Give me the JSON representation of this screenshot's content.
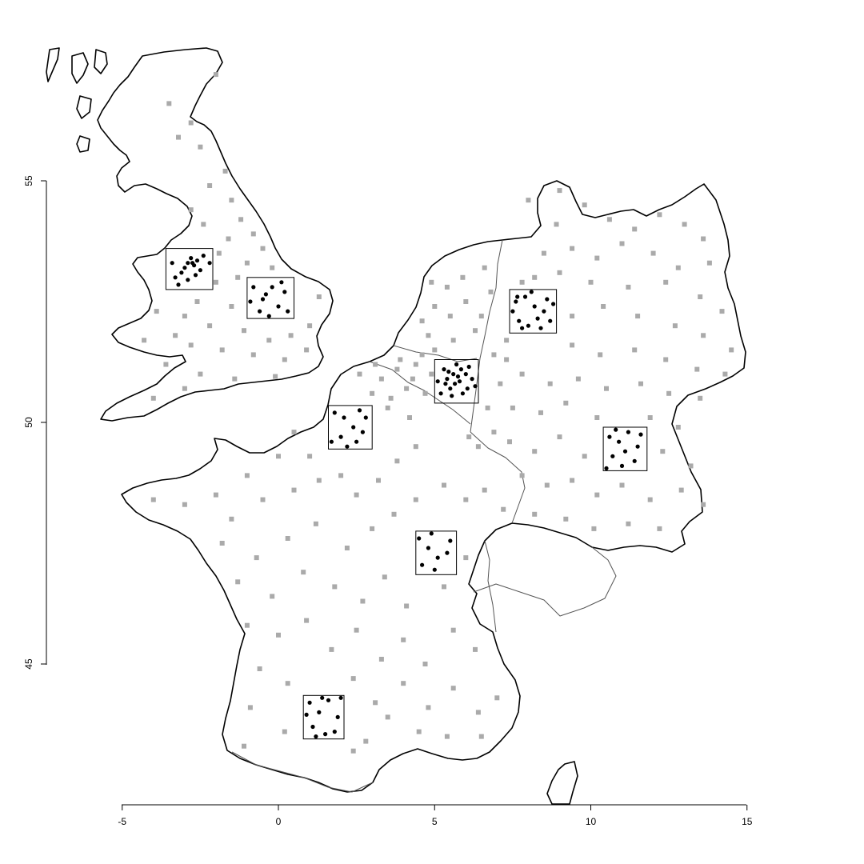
{
  "chart_data": {
    "type": "scatter",
    "title": "",
    "xlabel": "",
    "ylabel": "",
    "xlim": [
      -5,
      15
    ],
    "ylim": [
      42,
      57.5
    ],
    "x_ticks": [
      "-5",
      "0",
      "5",
      "10",
      "15"
    ],
    "y_ticks": [
      "45",
      "50",
      "55"
    ],
    "grid": false,
    "legend": "none",
    "colors": {
      "background_points": "#aaaaaa",
      "sample_points": "#000000",
      "coastline": "#000000",
      "borders": "#555555"
    },
    "sampling_boxes": [
      {
        "id": "nw-england",
        "x": [
          -3.6,
          -2.1
        ],
        "y": [
          52.75,
          53.6
        ]
      },
      {
        "id": "midlands",
        "x": [
          -1.0,
          0.5
        ],
        "y": [
          52.15,
          53.0
        ]
      },
      {
        "id": "lower-rhine",
        "x": [
          5.0,
          6.4
        ],
        "y": [
          50.4,
          51.3
        ]
      },
      {
        "id": "westphalia",
        "x": [
          7.4,
          8.9
        ],
        "y": [
          51.85,
          52.75
        ]
      },
      {
        "id": "picardy",
        "x": [
          1.6,
          3.0
        ],
        "y": [
          49.45,
          50.35
        ]
      },
      {
        "id": "bavaria",
        "x": [
          10.4,
          11.8
        ],
        "y": [
          49.0,
          49.9
        ]
      },
      {
        "id": "burgundy",
        "x": [
          4.4,
          5.7
        ],
        "y": [
          46.85,
          47.75
        ]
      },
      {
        "id": "gascony",
        "x": [
          0.8,
          2.1
        ],
        "y": [
          43.45,
          44.35
        ]
      }
    ],
    "sample_points": [
      [
        -3.0,
        53.2
      ],
      [
        -2.9,
        53.3
      ],
      [
        -2.7,
        53.25
      ],
      [
        -2.6,
        53.35
      ],
      [
        -3.1,
        53.1
      ],
      [
        -2.8,
        53.4
      ],
      [
        -2.5,
        53.15
      ],
      [
        -3.3,
        53.0
      ],
      [
        -2.4,
        53.45
      ],
      [
        -2.9,
        52.95
      ],
      [
        -3.4,
        53.3
      ],
      [
        -2.2,
        53.3
      ],
      [
        -2.65,
        53.05
      ],
      [
        -3.2,
        52.85
      ],
      [
        -2.75,
        53.3
      ],
      [
        -0.8,
        52.8
      ],
      [
        -0.5,
        52.55
      ],
      [
        -0.2,
        52.8
      ],
      [
        0.2,
        52.7
      ],
      [
        -0.6,
        52.3
      ],
      [
        0.0,
        52.4
      ],
      [
        0.3,
        52.3
      ],
      [
        -0.3,
        52.2
      ],
      [
        -0.9,
        52.5
      ],
      [
        0.1,
        52.9
      ],
      [
        -0.4,
        52.65
      ],
      [
        5.4,
        50.9
      ],
      [
        5.6,
        51.0
      ],
      [
        5.8,
        50.85
      ],
      [
        5.5,
        50.7
      ],
      [
        6.0,
        51.0
      ],
      [
        5.3,
        51.1
      ],
      [
        5.9,
        50.6
      ],
      [
        6.2,
        50.9
      ],
      [
        5.2,
        50.6
      ],
      [
        5.7,
        51.2
      ],
      [
        6.1,
        51.15
      ],
      [
        5.45,
        51.05
      ],
      [
        5.65,
        50.8
      ],
      [
        5.85,
        51.1
      ],
      [
        5.1,
        50.85
      ],
      [
        6.3,
        50.75
      ],
      [
        5.55,
        50.55
      ],
      [
        5.75,
        50.95
      ],
      [
        6.05,
        50.7
      ],
      [
        5.35,
        50.8
      ],
      [
        7.6,
        52.5
      ],
      [
        7.9,
        52.6
      ],
      [
        8.2,
        52.4
      ],
      [
        8.5,
        52.3
      ],
      [
        7.7,
        52.1
      ],
      [
        8.0,
        52.0
      ],
      [
        8.4,
        51.95
      ],
      [
        8.7,
        52.1
      ],
      [
        7.5,
        52.3
      ],
      [
        8.1,
        52.7
      ],
      [
        8.6,
        52.55
      ],
      [
        7.8,
        51.95
      ],
      [
        8.3,
        52.15
      ],
      [
        8.8,
        52.45
      ],
      [
        7.65,
        52.6
      ],
      [
        1.8,
        50.2
      ],
      [
        2.1,
        50.1
      ],
      [
        2.4,
        49.9
      ],
      [
        2.7,
        49.8
      ],
      [
        2.0,
        49.7
      ],
      [
        2.5,
        49.6
      ],
      [
        2.8,
        50.1
      ],
      [
        1.7,
        49.6
      ],
      [
        2.2,
        49.5
      ],
      [
        2.6,
        50.25
      ],
      [
        10.6,
        49.7
      ],
      [
        10.9,
        49.6
      ],
      [
        11.2,
        49.8
      ],
      [
        11.5,
        49.5
      ],
      [
        10.7,
        49.3
      ],
      [
        11.0,
        49.1
      ],
      [
        11.4,
        49.2
      ],
      [
        10.5,
        49.05
      ],
      [
        11.1,
        49.4
      ],
      [
        11.6,
        49.75
      ],
      [
        10.8,
        49.85
      ],
      [
        4.5,
        47.6
      ],
      [
        4.8,
        47.4
      ],
      [
        5.1,
        47.2
      ],
      [
        5.4,
        47.3
      ],
      [
        4.6,
        47.05
      ],
      [
        5.0,
        46.95
      ],
      [
        5.5,
        47.55
      ],
      [
        4.9,
        47.7
      ],
      [
        1.0,
        44.2
      ],
      [
        1.3,
        44.0
      ],
      [
        1.6,
        44.25
      ],
      [
        1.9,
        43.9
      ],
      [
        1.1,
        43.7
      ],
      [
        1.5,
        43.55
      ],
      [
        1.8,
        43.6
      ],
      [
        0.9,
        43.95
      ],
      [
        2.0,
        44.3
      ],
      [
        1.4,
        44.3
      ],
      [
        1.2,
        43.5
      ]
    ],
    "background_points": [
      [
        -2.0,
        57.2
      ],
      [
        -3.5,
        56.6
      ],
      [
        -2.8,
        56.2
      ],
      [
        -3.2,
        55.9
      ],
      [
        -2.5,
        55.7
      ],
      [
        -1.7,
        55.2
      ],
      [
        -2.2,
        54.9
      ],
      [
        -1.5,
        54.6
      ],
      [
        -2.8,
        54.4
      ],
      [
        -1.2,
        54.2
      ],
      [
        -0.8,
        53.9
      ],
      [
        -2.4,
        54.1
      ],
      [
        -1.6,
        53.8
      ],
      [
        -0.5,
        53.6
      ],
      [
        -1.9,
        53.5
      ],
      [
        -1.0,
        53.3
      ],
      [
        -2.0,
        52.9
      ],
      [
        -2.6,
        52.5
      ],
      [
        -1.5,
        52.4
      ],
      [
        -2.2,
        52.0
      ],
      [
        -1.1,
        51.9
      ],
      [
        -0.3,
        51.7
      ],
      [
        0.4,
        51.8
      ],
      [
        1.0,
        52.0
      ],
      [
        -2.8,
        51.6
      ],
      [
        -3.3,
        51.8
      ],
      [
        -1.8,
        51.5
      ],
      [
        -0.8,
        51.4
      ],
      [
        0.2,
        51.3
      ],
      [
        -3.6,
        51.2
      ],
      [
        -2.5,
        51.0
      ],
      [
        -1.4,
        50.9
      ],
      [
        -0.1,
        50.95
      ],
      [
        -4.0,
        50.5
      ],
      [
        -3.0,
        50.7
      ],
      [
        -3.9,
        52.3
      ],
      [
        -4.3,
        51.7
      ],
      [
        1.3,
        52.6
      ],
      [
        0.9,
        51.5
      ],
      [
        -1.3,
        53.0
      ],
      [
        -0.2,
        53.2
      ],
      [
        -3.0,
        52.2
      ],
      [
        0.5,
        49.8
      ],
      [
        0.0,
        49.3
      ],
      [
        -1.0,
        48.9
      ],
      [
        -2.0,
        48.5
      ],
      [
        -3.0,
        48.3
      ],
      [
        -4.0,
        48.4
      ],
      [
        -1.5,
        48.0
      ],
      [
        -0.5,
        48.4
      ],
      [
        0.5,
        48.6
      ],
      [
        1.3,
        48.8
      ],
      [
        2.0,
        48.9
      ],
      [
        2.5,
        48.5
      ],
      [
        3.2,
        48.8
      ],
      [
        3.8,
        49.2
      ],
      [
        4.4,
        49.5
      ],
      [
        1.0,
        49.3
      ],
      [
        3.0,
        50.6
      ],
      [
        2.6,
        51.0
      ],
      [
        3.5,
        50.3
      ],
      [
        4.2,
        50.1
      ],
      [
        -1.8,
        47.5
      ],
      [
        -0.7,
        47.2
      ],
      [
        0.3,
        47.6
      ],
      [
        1.2,
        47.9
      ],
      [
        2.2,
        47.4
      ],
      [
        3.0,
        47.8
      ],
      [
        3.7,
        48.1
      ],
      [
        4.4,
        48.4
      ],
      [
        5.3,
        48.7
      ],
      [
        6.0,
        48.4
      ],
      [
        6.6,
        48.6
      ],
      [
        7.2,
        48.2
      ],
      [
        -1.3,
        46.7
      ],
      [
        -0.2,
        46.4
      ],
      [
        0.8,
        46.9
      ],
      [
        1.8,
        46.6
      ],
      [
        2.7,
        46.3
      ],
      [
        3.4,
        46.8
      ],
      [
        4.1,
        46.2
      ],
      [
        5.3,
        46.6
      ],
      [
        6.0,
        47.2
      ],
      [
        -1.0,
        45.8
      ],
      [
        0.0,
        45.6
      ],
      [
        0.9,
        45.9
      ],
      [
        1.7,
        45.3
      ],
      [
        2.5,
        45.7
      ],
      [
        3.3,
        45.1
      ],
      [
        4.0,
        45.5
      ],
      [
        4.7,
        45.0
      ],
      [
        5.6,
        45.7
      ],
      [
        6.3,
        45.3
      ],
      [
        -0.6,
        44.9
      ],
      [
        0.3,
        44.6
      ],
      [
        2.4,
        44.7
      ],
      [
        3.1,
        44.2
      ],
      [
        4.0,
        44.6
      ],
      [
        4.8,
        44.1
      ],
      [
        5.6,
        44.5
      ],
      [
        6.4,
        44.0
      ],
      [
        -0.9,
        44.1
      ],
      [
        0.2,
        43.6
      ],
      [
        2.8,
        43.4
      ],
      [
        3.5,
        43.9
      ],
      [
        4.5,
        43.6
      ],
      [
        5.4,
        43.5
      ],
      [
        6.5,
        43.5
      ],
      [
        7.0,
        44.3
      ],
      [
        -1.1,
        43.3
      ],
      [
        2.4,
        43.2
      ],
      [
        3.3,
        50.9
      ],
      [
        3.8,
        51.1
      ],
      [
        4.4,
        51.2
      ],
      [
        4.1,
        50.7
      ],
      [
        4.7,
        50.6
      ],
      [
        3.6,
        50.5
      ],
      [
        4.3,
        50.9
      ],
      [
        4.9,
        51.0
      ],
      [
        3.9,
        51.3
      ],
      [
        4.6,
        51.4
      ],
      [
        3.1,
        51.2
      ],
      [
        5.0,
        51.5
      ],
      [
        4.6,
        52.1
      ],
      [
        5.0,
        52.4
      ],
      [
        5.5,
        52.2
      ],
      [
        6.0,
        52.5
      ],
      [
        6.5,
        52.2
      ],
      [
        4.8,
        51.8
      ],
      [
        5.6,
        51.7
      ],
      [
        6.3,
        51.9
      ],
      [
        5.9,
        53.0
      ],
      [
        6.6,
        53.2
      ],
      [
        5.4,
        52.8
      ],
      [
        6.8,
        52.7
      ],
      [
        4.9,
        52.9
      ],
      [
        6.7,
        50.3
      ],
      [
        6.9,
        49.8
      ],
      [
        6.4,
        49.5
      ],
      [
        6.1,
        49.7
      ],
      [
        6.9,
        51.4
      ],
      [
        7.1,
        50.8
      ],
      [
        7.3,
        51.3
      ],
      [
        8.0,
        54.6
      ],
      [
        9.0,
        54.8
      ],
      [
        9.8,
        54.5
      ],
      [
        10.6,
        54.2
      ],
      [
        11.4,
        54.0
      ],
      [
        12.2,
        54.3
      ],
      [
        13.0,
        54.1
      ],
      [
        13.6,
        53.8
      ],
      [
        8.5,
        53.5
      ],
      [
        9.4,
        53.6
      ],
      [
        10.2,
        53.4
      ],
      [
        11.0,
        53.7
      ],
      [
        12.0,
        53.5
      ],
      [
        12.8,
        53.2
      ],
      [
        13.8,
        53.3
      ],
      [
        8.2,
        53.0
      ],
      [
        9.0,
        53.1
      ],
      [
        10.0,
        52.9
      ],
      [
        11.2,
        52.8
      ],
      [
        12.4,
        52.9
      ],
      [
        13.5,
        52.6
      ],
      [
        14.2,
        52.3
      ],
      [
        9.4,
        52.2
      ],
      [
        10.4,
        52.4
      ],
      [
        11.5,
        52.2
      ],
      [
        12.7,
        52.0
      ],
      [
        13.6,
        51.8
      ],
      [
        14.5,
        51.5
      ],
      [
        7.3,
        51.7
      ],
      [
        9.4,
        51.6
      ],
      [
        10.3,
        51.4
      ],
      [
        11.4,
        51.5
      ],
      [
        12.4,
        51.3
      ],
      [
        13.4,
        51.1
      ],
      [
        14.3,
        51.0
      ],
      [
        7.8,
        51.0
      ],
      [
        8.7,
        50.8
      ],
      [
        9.6,
        50.9
      ],
      [
        10.5,
        50.7
      ],
      [
        11.6,
        50.8
      ],
      [
        12.5,
        50.6
      ],
      [
        13.5,
        50.5
      ],
      [
        7.5,
        50.3
      ],
      [
        8.4,
        50.2
      ],
      [
        9.2,
        50.4
      ],
      [
        10.2,
        50.1
      ],
      [
        11.9,
        50.1
      ],
      [
        12.8,
        49.9
      ],
      [
        7.4,
        49.6
      ],
      [
        8.2,
        49.4
      ],
      [
        9.0,
        49.7
      ],
      [
        9.8,
        49.3
      ],
      [
        12.3,
        49.4
      ],
      [
        13.2,
        49.1
      ],
      [
        7.8,
        48.9
      ],
      [
        8.6,
        48.7
      ],
      [
        9.4,
        48.8
      ],
      [
        10.2,
        48.5
      ],
      [
        11.0,
        48.7
      ],
      [
        11.9,
        48.4
      ],
      [
        12.9,
        48.6
      ],
      [
        13.6,
        48.3
      ],
      [
        8.2,
        48.1
      ],
      [
        9.2,
        48.0
      ],
      [
        10.1,
        47.8
      ],
      [
        11.2,
        47.9
      ],
      [
        12.2,
        47.8
      ],
      [
        7.8,
        52.9
      ],
      [
        8.9,
        54.1
      ]
    ]
  }
}
